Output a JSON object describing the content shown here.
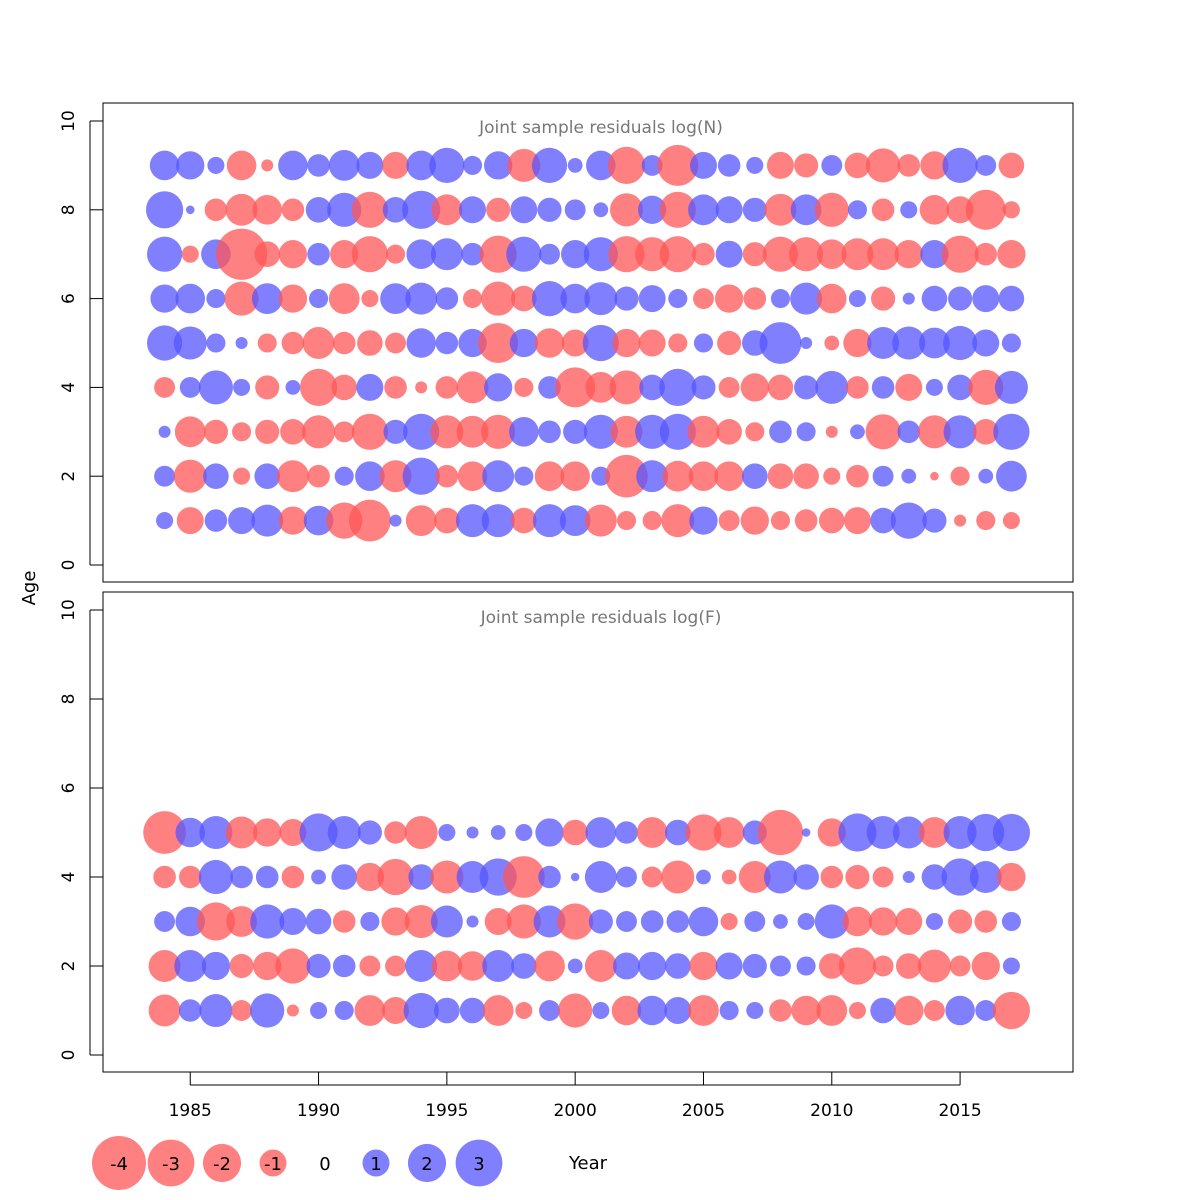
{
  "chart_data": {
    "type": "scatter",
    "subtype": "bubble",
    "xlabel": "Year",
    "ylabel": "Age",
    "xlim": [
      1981.6,
      2019.4
    ],
    "x_ticks": [
      1985,
      1990,
      1995,
      2000,
      2005,
      2010,
      2015
    ],
    "y_ticks": [
      0,
      2,
      4,
      6,
      8,
      10
    ],
    "colors": {
      "positive": "#5555ff",
      "negative": "#ff5555"
    },
    "years": [
      1984,
      1985,
      1986,
      1987,
      1988,
      1989,
      1990,
      1991,
      1992,
      1993,
      1994,
      1995,
      1996,
      1997,
      1998,
      1999,
      2000,
      2001,
      2002,
      2003,
      2004,
      2005,
      2006,
      2007,
      2008,
      2009,
      2010,
      2011,
      2012,
      2013,
      2014,
      2015,
      2016,
      2017
    ],
    "legend": {
      "values": [
        -4,
        -3,
        -2,
        -1,
        0,
        1,
        2,
        3
      ],
      "labels": [
        "-4",
        "-3",
        "-2",
        "-1",
        "0",
        "1",
        "2",
        "3"
      ]
    },
    "panels": [
      {
        "title": "Joint sample residuals log(N)",
        "ylim": [
          0,
          10
        ],
        "rows": [
          {
            "age": 9,
            "residuals": [
              1.2,
              1.1,
              0.4,
              -1.2,
              -0.2,
              1.2,
              0.7,
              1.3,
              1.0,
              -1.0,
              1.2,
              1.7,
              0.5,
              1.1,
              -1.5,
              1.7,
              0.3,
              1.2,
              -1.9,
              0.6,
              -2.3,
              1.0,
              0.7,
              0.4,
              -1.0,
              -0.8,
              0.6,
              -0.9,
              -1.6,
              -0.7,
              -1.1,
              1.7,
              0.6,
              -0.9
            ]
          },
          {
            "age": 8,
            "residuals": [
              1.9,
              0.1,
              -0.7,
              -1.4,
              -1.2,
              -0.7,
              0.9,
              1.6,
              -1.8,
              0.9,
              2.0,
              -1.3,
              1.0,
              -0.8,
              1.0,
              0.8,
              0.6,
              0.3,
              -1.5,
              1.1,
              -1.8,
              1.3,
              1.0,
              0.8,
              -1.4,
              1.3,
              -1.6,
              0.5,
              -0.7,
              0.4,
              -1.2,
              -1.0,
              -2.2,
              -0.4
            ]
          },
          {
            "age": 7,
            "residuals": [
              1.7,
              -0.4,
              1.2,
              -3.6,
              -0.9,
              -1.1,
              0.7,
              -1.1,
              -1.8,
              -0.5,
              1.2,
              1.4,
              0.7,
              -1.9,
              1.7,
              0.6,
              1.1,
              1.6,
              -1.8,
              -1.6,
              -1.8,
              -0.7,
              1.0,
              -0.8,
              -1.7,
              -1.6,
              -1.2,
              -1.4,
              -1.4,
              -1.1,
              1.1,
              -1.9,
              -0.7,
              -1.1
            ]
          },
          {
            "age": 6,
            "residuals": [
              1.1,
              1.2,
              0.5,
              -1.6,
              1.3,
              -1.1,
              0.5,
              -1.3,
              -0.4,
              1.3,
              1.4,
              0.7,
              -0.5,
              -1.6,
              -0.9,
              1.7,
              1.2,
              1.5,
              0.8,
              1.0,
              0.5,
              -0.6,
              -1.1,
              -0.7,
              0.5,
              1.4,
              -1.2,
              0.4,
              -0.8,
              0.2,
              0.9,
              0.8,
              1.0,
              0.9
            ]
          },
          {
            "age": 5,
            "residuals": [
              1.7,
              1.5,
              0.5,
              0.2,
              -0.5,
              -0.7,
              -1.4,
              -0.7,
              -0.9,
              -0.6,
              1.2,
              0.7,
              1.1,
              -2.2,
              1.1,
              -1.2,
              -1.0,
              1.8,
              -1.1,
              -1.0,
              -0.5,
              0.5,
              -0.8,
              0.9,
              2.4,
              0.2,
              -0.3,
              -1.1,
              1.4,
              1.5,
              1.3,
              1.6,
              1.0,
              0.5
            ]
          },
          {
            "age": 4,
            "residuals": [
              -0.6,
              0.6,
              1.6,
              0.4,
              -0.8,
              0.3,
              -1.9,
              -0.9,
              1.0,
              -0.7,
              -0.2,
              -0.7,
              -1.4,
              1.1,
              -0.5,
              0.7,
              -2.2,
              -1.3,
              -1.6,
              0.9,
              1.9,
              0.8,
              -0.6,
              -1.1,
              -0.9,
              0.8,
              1.5,
              -0.7,
              0.7,
              -1.0,
              0.4,
              0.9,
              -1.7,
              1.5
            ]
          },
          {
            "age": 3,
            "residuals": [
              0.2,
              -1.3,
              -0.8,
              -0.5,
              -0.8,
              -0.9,
              -1.5,
              -0.6,
              -1.8,
              0.8,
              1.8,
              -1.5,
              -1.4,
              -1.6,
              1.2,
              0.7,
              0.8,
              1.6,
              -1.4,
              1.6,
              1.8,
              -1.4,
              -0.9,
              -0.5,
              0.7,
              0.5,
              -0.2,
              0.3,
              -1.7,
              0.7,
              -1.5,
              1.5,
              -0.9,
              1.8
            ]
          },
          {
            "age": 2,
            "residuals": [
              0.6,
              -1.5,
              0.9,
              -0.4,
              0.9,
              -1.4,
              -0.7,
              0.5,
              1.2,
              -1.4,
              1.9,
              -0.7,
              -1.2,
              1.4,
              0.5,
              -1.2,
              -1.2,
              0.5,
              -2.5,
              1.4,
              -1.3,
              -1.2,
              -1.2,
              0.9,
              -0.9,
              -0.9,
              -0.4,
              -0.7,
              0.6,
              0.3,
              -0.1,
              -0.5,
              0.3,
              1.3
            ]
          },
          {
            "age": 1,
            "residuals": [
              0.4,
              -1.0,
              0.7,
              1.0,
              1.4,
              -1.1,
              1.2,
              -1.8,
              -2.4,
              0.2,
              -1.3,
              -0.9,
              1.5,
              1.5,
              -0.9,
              1.5,
              1.3,
              -1.4,
              -0.5,
              -0.5,
              -1.5,
              1.1,
              -0.6,
              -1.1,
              -0.5,
              -0.7,
              -0.9,
              -1.0,
              0.9,
              1.8,
              0.8,
              -0.2,
              -0.5,
              -0.4
            ]
          }
        ]
      },
      {
        "title": "Joint sample residuals log(F)",
        "ylim": [
          0,
          10
        ],
        "rows": [
          {
            "age": 5,
            "residuals": [
              -2.5,
              1.2,
              1.5,
              -1.4,
              -1.1,
              -1.0,
              2.0,
              1.5,
              0.8,
              -0.7,
              -1.5,
              0.4,
              0.2,
              0.3,
              0.4,
              1.1,
              -0.9,
              1.3,
              0.7,
              -1.3,
              0.9,
              -1.8,
              -1.3,
              0.8,
              -2.8,
              0.1,
              -1.1,
              2.0,
              1.5,
              1.4,
              -1.3,
              1.5,
              1.9,
              1.9
            ]
          },
          {
            "age": 4,
            "residuals": [
              -0.7,
              -0.7,
              1.6,
              0.7,
              0.7,
              -0.7,
              0.3,
              0.9,
              -1.1,
              -1.8,
              0.9,
              -1.5,
              1.4,
              1.9,
              -2.4,
              0.7,
              0.1,
              1.4,
              0.6,
              -0.6,
              -1.5,
              0.3,
              -0.3,
              -1.4,
              1.5,
              0.9,
              -0.7,
              -0.8,
              -0.6,
              0.2,
              0.9,
              1.9,
              1.4,
              -1.1
            ]
          },
          {
            "age": 3,
            "residuals": [
              0.6,
              1.2,
              -2.0,
              -1.3,
              1.6,
              1.0,
              0.9,
              -0.7,
              0.5,
              -1.1,
              -1.5,
              1.4,
              0.2,
              -1.0,
              -1.6,
              1.4,
              -1.8,
              0.8,
              0.6,
              0.7,
              0.7,
              1.2,
              -0.4,
              0.6,
              0.3,
              0.4,
              1.6,
              -1.2,
              -1.1,
              -1.0,
              0.4,
              -0.8,
              -0.7,
              0.5
            ]
          },
          {
            "age": 2,
            "residuals": [
              -1.4,
              1.4,
              1.1,
              -0.8,
              -1.1,
              -1.7,
              0.8,
              0.7,
              -0.6,
              -0.6,
              1.4,
              -1.3,
              -1.2,
              1.4,
              0.9,
              -1.3,
              0.3,
              -1.4,
              1.0,
              1.1,
              0.9,
              -1.1,
              1.0,
              0.8,
              0.6,
              0.5,
              -0.9,
              -1.9,
              -0.6,
              -0.9,
              -1.5,
              -0.6,
              -1.1,
              0.4
            ]
          },
          {
            "age": 1,
            "residuals": [
              -1.4,
              0.7,
              1.5,
              -0.6,
              1.6,
              -0.2,
              0.4,
              0.5,
              -1.3,
              -1.0,
              1.7,
              0.9,
              0.9,
              -1.3,
              -0.4,
              0.6,
              -1.6,
              0.4,
              -1.2,
              1.2,
              1.0,
              -1.3,
              0.5,
              0.4,
              -0.7,
              -1.2,
              -1.3,
              -0.4,
              0.9,
              -1.2,
              -0.6,
              1.2,
              0.6,
              -1.9
            ]
          }
        ]
      }
    ]
  }
}
